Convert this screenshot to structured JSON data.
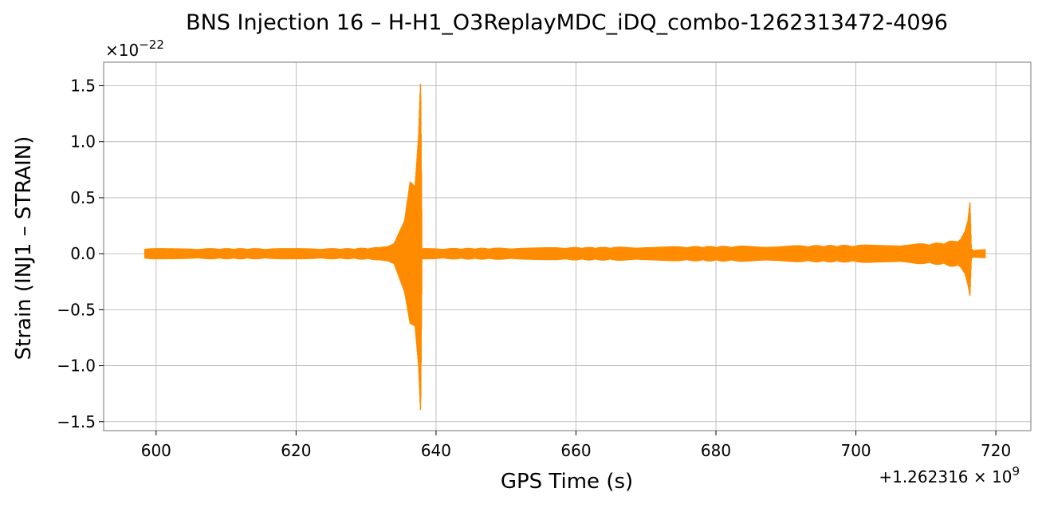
{
  "chart_data": {
    "type": "line",
    "title": "BNS Injection 16 – H-H1_O3ReplayMDC_iDQ_combo-1262313472-4096",
    "xlabel": "GPS Time (s)",
    "ylabel": "Strain (INJ1 – STRAIN)",
    "y_scale_factor_label": "×10",
    "y_scale_factor_exponent": "−22",
    "x_offset_label": "+1.262316 × 10",
    "x_offset_exponent": "9",
    "xlim": [
      592.5,
      725
    ],
    "ylim": [
      -1.58,
      1.71
    ],
    "xticks": [
      600,
      620,
      640,
      660,
      680,
      700,
      720
    ],
    "xtick_labels": [
      "600",
      "620",
      "640",
      "660",
      "680",
      "700",
      "720"
    ],
    "yticks": [
      -1.5,
      -1.0,
      -0.5,
      0.0,
      0.5,
      1.0,
      1.5
    ],
    "ytick_labels": [
      "−1.5",
      "−1.0",
      "−0.5",
      "0.0",
      "0.5",
      "1.0",
      "1.5"
    ],
    "grid": true,
    "series": [
      {
        "color": "#ff8c00",
        "envelope": {
          "x": [
            598.4,
            600,
            610,
            620,
            628,
            632,
            634,
            635.5,
            636.3,
            637.0,
            637.5,
            637.8,
            638.0,
            640,
            660,
            680,
            700,
            708,
            712,
            714,
            715,
            715.6,
            716.0,
            716.3,
            716.5,
            716.8,
            718.5
          ],
          "upper": [
            0.05,
            0.05,
            0.05,
            0.05,
            0.05,
            0.06,
            0.1,
            0.3,
            0.65,
            0.6,
            1.05,
            1.56,
            0.05,
            0.05,
            0.06,
            0.07,
            0.08,
            0.09,
            0.1,
            0.12,
            0.14,
            0.2,
            0.3,
            0.49,
            0.05,
            0.04,
            0.04
          ],
          "lower": [
            -0.05,
            -0.05,
            -0.05,
            -0.05,
            -0.05,
            -0.06,
            -0.1,
            -0.35,
            -0.63,
            -0.65,
            -1.0,
            -1.43,
            -0.05,
            -0.05,
            -0.06,
            -0.07,
            -0.08,
            -0.09,
            -0.1,
            -0.12,
            -0.13,
            -0.18,
            -0.28,
            -0.4,
            -0.05,
            -0.04,
            -0.04
          ]
        }
      }
    ]
  }
}
